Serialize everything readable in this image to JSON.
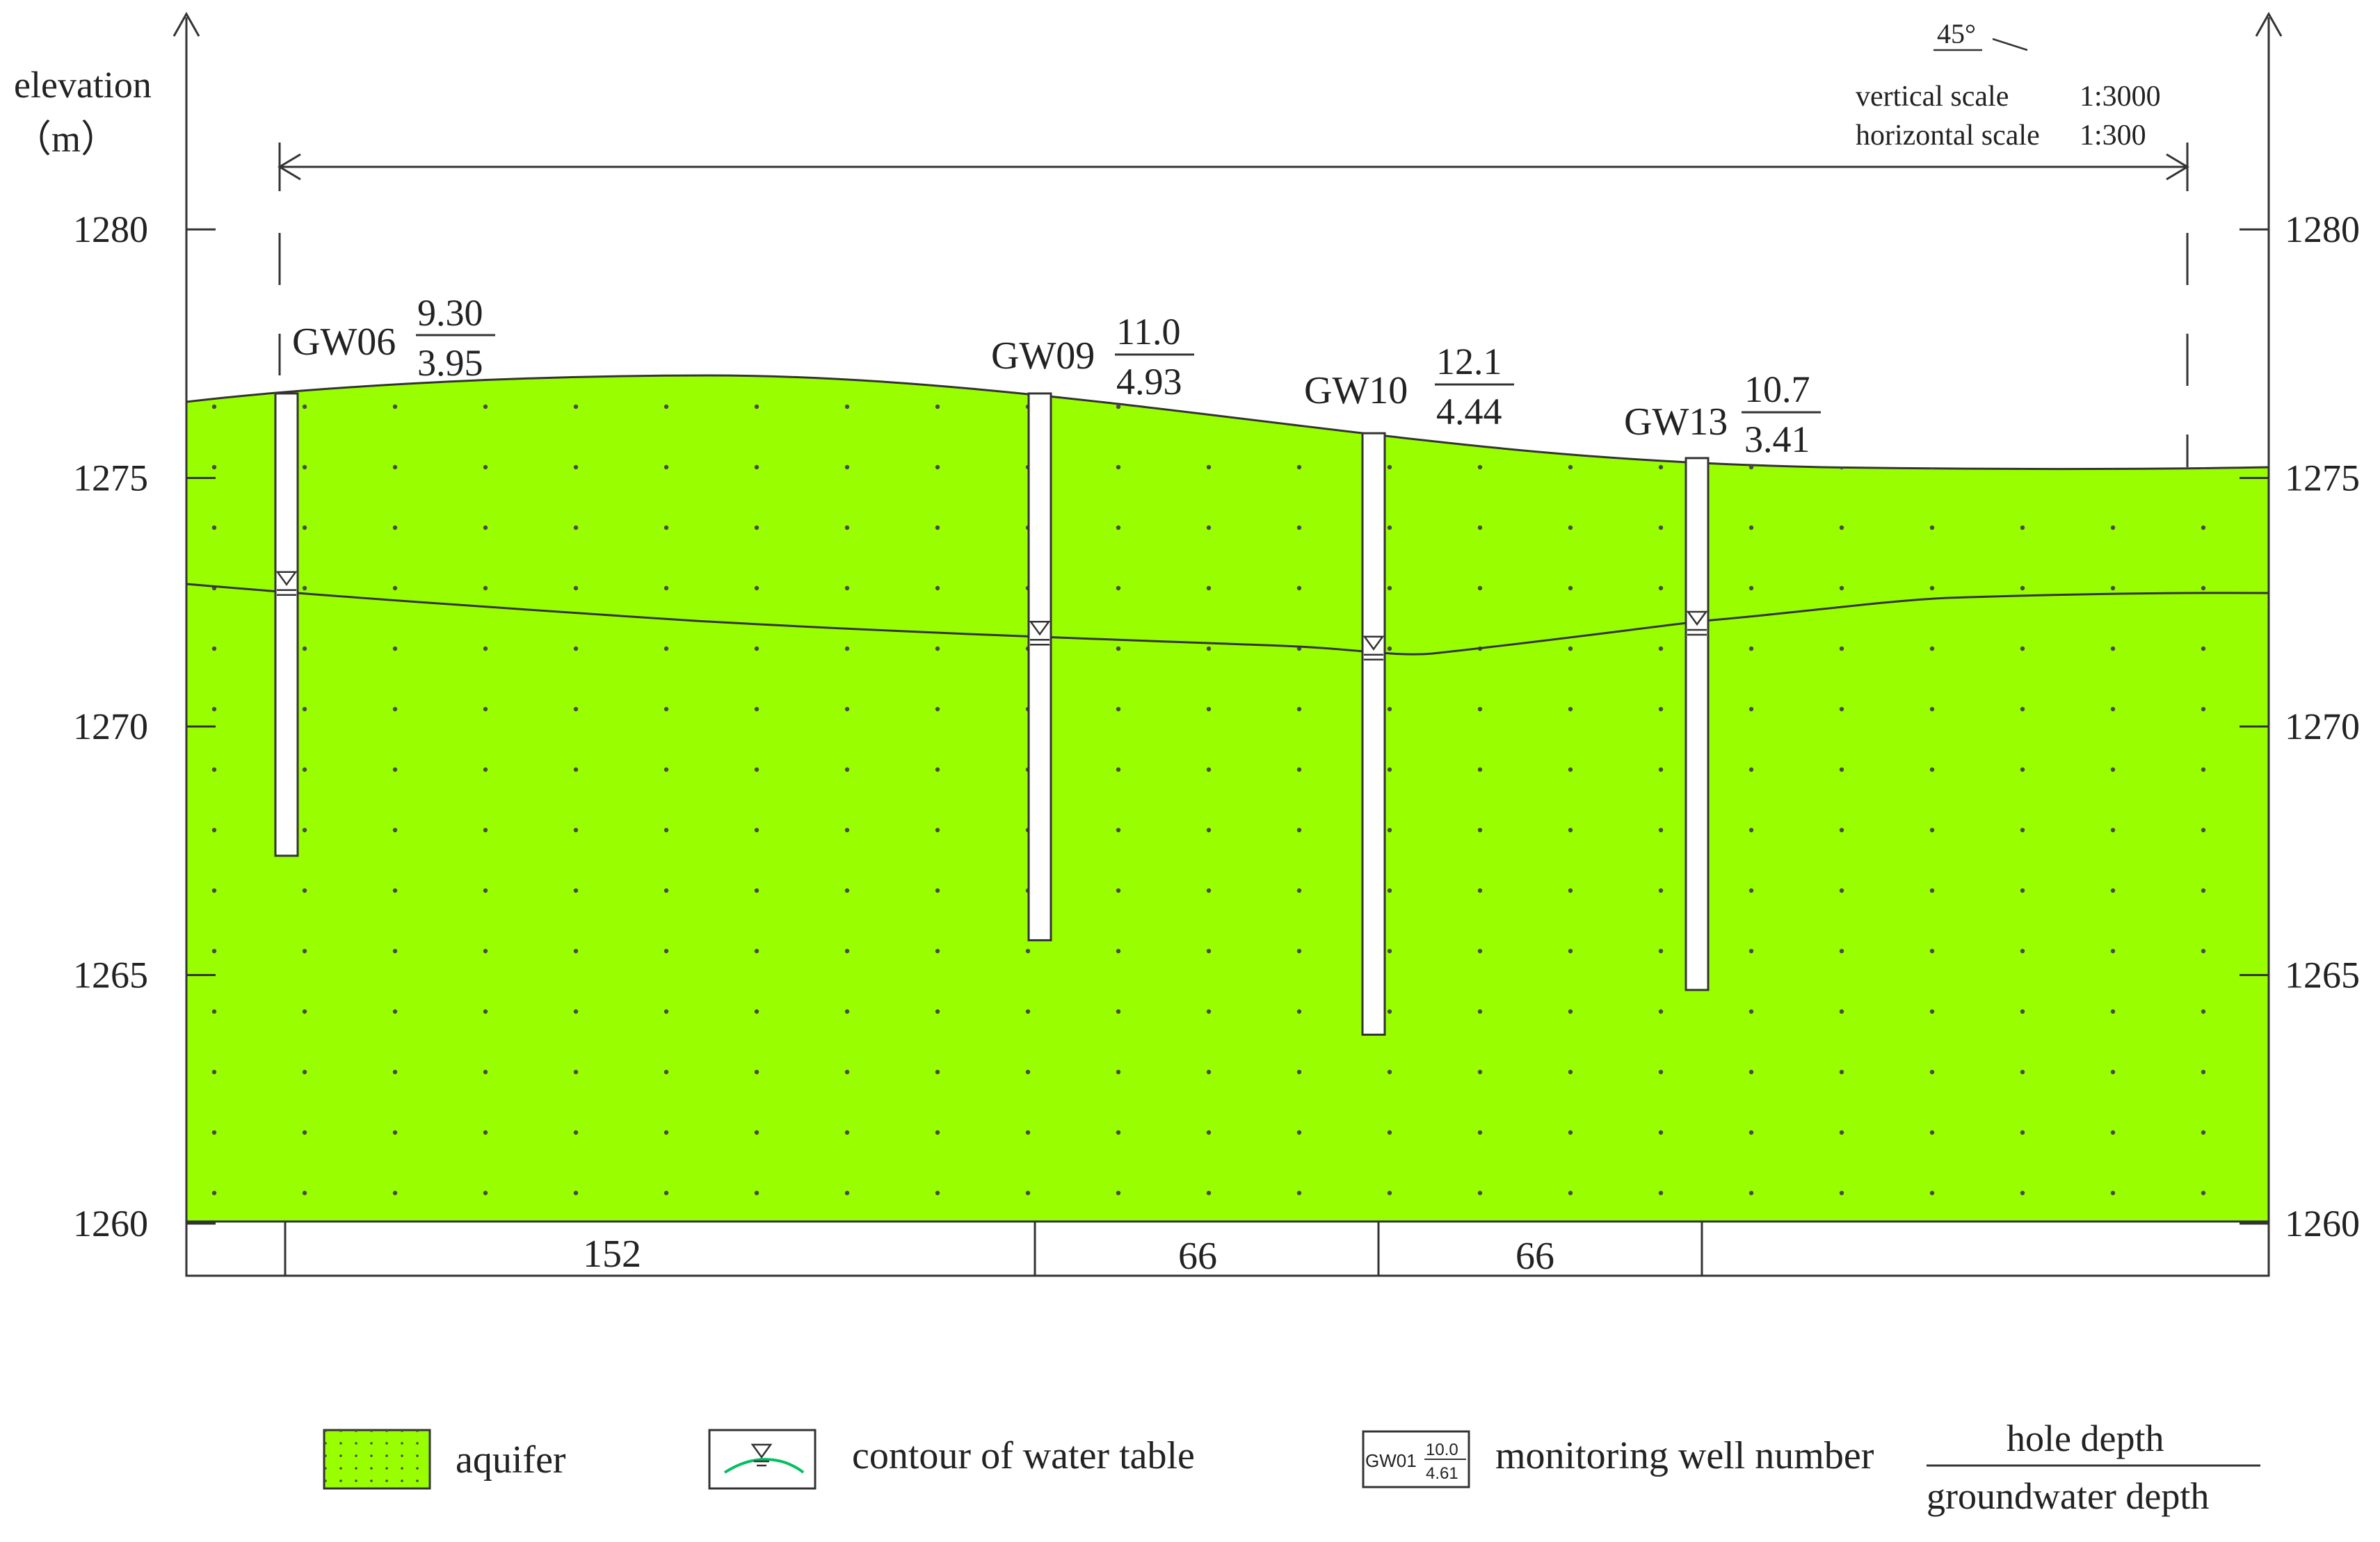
{
  "axis": {
    "label_line1": "elevation",
    "label_line2": "（m）",
    "ticks": [
      "1280",
      "1275",
      "1270",
      "1265",
      "1260"
    ],
    "tick_values": [
      1280,
      1275,
      1270,
      1265,
      1260
    ]
  },
  "scale_box": {
    "angle": "45°",
    "vertical_label": "vertical scale",
    "vertical_value": "1:3000",
    "horizontal_label": "horizontal scale",
    "horizontal_value": "1:300"
  },
  "wells": [
    {
      "id": "GW06",
      "hole_depth": "9.30",
      "groundwater_depth": "3.95",
      "top_elev": 1276.7,
      "water_elev": 1272.8,
      "bottom_elev": 1267.4
    },
    {
      "id": "GW09",
      "hole_depth": "11.0",
      "groundwater_depth": "4.93",
      "top_elev": 1276.7,
      "water_elev": 1271.8,
      "bottom_elev": 1265.7
    },
    {
      "id": "GW10",
      "hole_depth": "12.1",
      "groundwater_depth": "4.44",
      "top_elev": 1275.9,
      "water_elev": 1271.5,
      "bottom_elev": 1263.8
    },
    {
      "id": "GW13",
      "hole_depth": "10.7",
      "groundwater_depth": "3.41",
      "top_elev": 1275.4,
      "water_elev": 1272.0,
      "bottom_elev": 1264.7
    }
  ],
  "distances": [
    "152",
    "66",
    "66"
  ],
  "legend": {
    "aquifer": "aquifer",
    "water_table": "contour of water table",
    "sample_id": "GW01",
    "sample_hole": "10.0",
    "sample_gw": "4.61",
    "monitoring": "monitoring well number",
    "hole_depth": "hole depth",
    "groundwater_depth": "groundwater depth"
  },
  "colors": {
    "aquifer": "#99FF00",
    "line": "#333333",
    "water_table_legend": "#00C060"
  }
}
